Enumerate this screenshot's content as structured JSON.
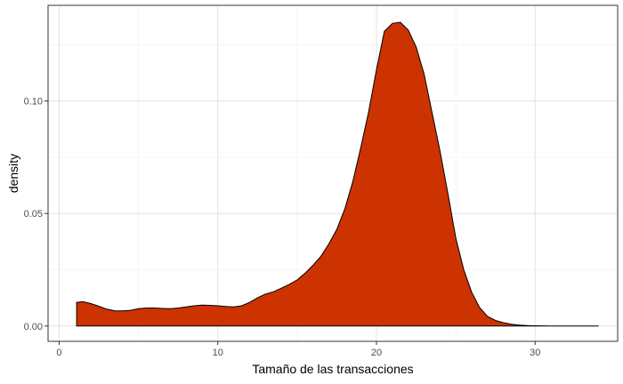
{
  "chart_data": {
    "type": "area",
    "title": "",
    "xlabel": "Tamaño de las transacciones",
    "ylabel": "density",
    "xlim": [
      -0.7,
      35.2
    ],
    "ylim": [
      -0.0068,
      0.1425
    ],
    "x_ticks": [
      0,
      10,
      20,
      30
    ],
    "x_tick_labels": [
      "0",
      "10",
      "20",
      "30"
    ],
    "y_ticks": [
      0,
      0.05,
      0.1
    ],
    "y_tick_labels": [
      "0.00",
      "0.05",
      "0.10"
    ],
    "x_minor": [
      5,
      15,
      25
    ],
    "y_minor": [
      0.025,
      0.075,
      0.125
    ],
    "grid": true,
    "legend": "none",
    "fill_color": "#cc3300",
    "line_color": "#000000",
    "series": [
      {
        "x": [
          1.1,
          1.5,
          2,
          2.5,
          3,
          3.5,
          4,
          4.5,
          5,
          5.5,
          6,
          6.5,
          7,
          7.5,
          8,
          8.5,
          9,
          9.5,
          10,
          10.5,
          11,
          11.5,
          12,
          12.5,
          13,
          13.5,
          14,
          14.5,
          15,
          15.5,
          16,
          16.5,
          17,
          17.5,
          18,
          18.5,
          19,
          19.5,
          20,
          20.5,
          21,
          21.5,
          22,
          22.5,
          23,
          23.5,
          24,
          24.5,
          25,
          25.5,
          26,
          26.5,
          27,
          27.5,
          28,
          28.5,
          29,
          29.5,
          30,
          31,
          32,
          33,
          34
        ],
        "y": [
          0.0105,
          0.0108,
          0.01,
          0.0088,
          0.0075,
          0.0068,
          0.0067,
          0.007,
          0.0077,
          0.008,
          0.008,
          0.0078,
          0.0077,
          0.008,
          0.0085,
          0.009,
          0.0093,
          0.0092,
          0.009,
          0.0087,
          0.0085,
          0.009,
          0.0105,
          0.0125,
          0.0142,
          0.0152,
          0.0168,
          0.0185,
          0.0205,
          0.0235,
          0.027,
          0.031,
          0.0365,
          0.043,
          0.052,
          0.064,
          0.079,
          0.095,
          0.114,
          0.131,
          0.1345,
          0.135,
          0.1315,
          0.124,
          0.112,
          0.095,
          0.078,
          0.059,
          0.039,
          0.025,
          0.015,
          0.0082,
          0.0043,
          0.0025,
          0.0015,
          0.0008,
          0.0004,
          0.0002,
          0.0001,
          0.0,
          0.0,
          0.0,
          0.0
        ]
      }
    ]
  }
}
